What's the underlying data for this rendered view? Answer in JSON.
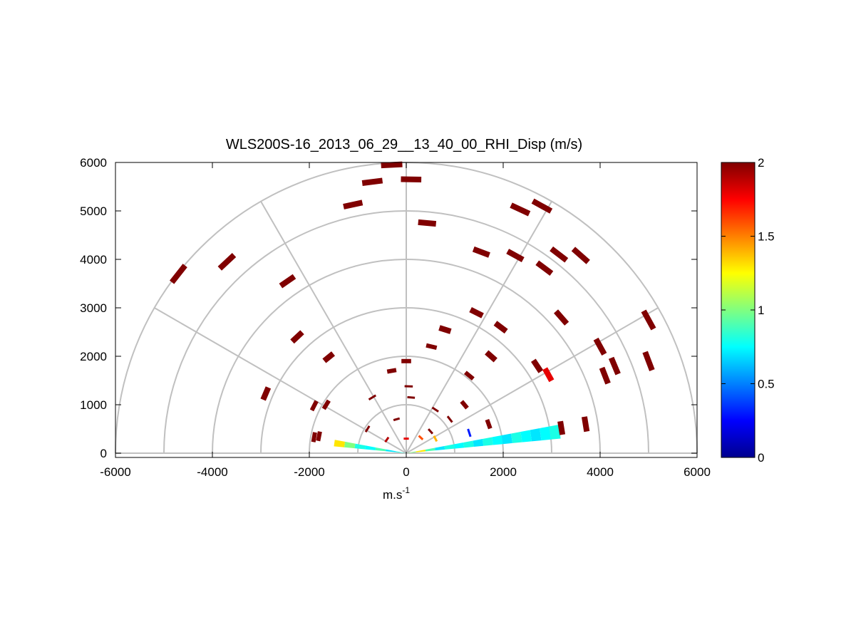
{
  "chart_data": {
    "type": "scatter",
    "title": "WLS200S-16_2013_06_29__13_40_00_RHI_Disp (m/s)",
    "xlabel": "m.s",
    "xlabel_superscript": "-1",
    "ylabel": "",
    "xlim": [
      -6000,
      6000
    ],
    "ylim": [
      -100,
      6000
    ],
    "x_ticks": [
      -6000,
      -4000,
      -2000,
      0,
      2000,
      4000,
      6000
    ],
    "y_ticks": [
      0,
      1000,
      2000,
      3000,
      4000,
      5000,
      6000
    ],
    "grid": true,
    "polar_rings": [
      1000,
      2000,
      3000,
      4000,
      5000,
      6000
    ],
    "polar_spokes_deg": [
      0,
      30,
      60,
      90,
      120,
      150,
      180
    ],
    "colorbar": {
      "min": 0,
      "max": 2,
      "ticks": [
        0,
        0.5,
        1,
        1.5,
        2
      ],
      "colormap": "jet",
      "colors": [
        "#00008f",
        "#0000ff",
        "#0080ff",
        "#00ffff",
        "#80ff80",
        "#ffff00",
        "#ff8000",
        "#ff0000",
        "#800000"
      ]
    },
    "beam": {
      "elevation_deg": 8,
      "range_max": 3200,
      "values_near_to_far": [
        1.0,
        1.3,
        0.9,
        0.7,
        0.8,
        0.75,
        0.8,
        0.7,
        0.8,
        0.75,
        0.7,
        0.8,
        0.75,
        0.7,
        0.75,
        0.8
      ]
    },
    "left_beam": {
      "elevation_deg": 172,
      "range_max": 1500,
      "values_near_to_far": [
        0.8,
        0.7,
        0.9,
        0.75,
        0.8,
        1.0,
        1.3
      ]
    },
    "points": [
      {
        "x": -4700,
        "y": 3700,
        "v": 2
      },
      {
        "x": -3700,
        "y": 3950,
        "v": 2
      },
      {
        "x": -2450,
        "y": 3550,
        "v": 2
      },
      {
        "x": -2250,
        "y": 2400,
        "v": 2
      },
      {
        "x": -1600,
        "y": 1980,
        "v": 2
      },
      {
        "x": -2900,
        "y": 1230,
        "v": 2
      },
      {
        "x": -1900,
        "y": 980,
        "v": 2
      },
      {
        "x": -1650,
        "y": 1000,
        "v": 2
      },
      {
        "x": -1100,
        "y": 5130,
        "v": 2
      },
      {
        "x": -700,
        "y": 5600,
        "v": 2
      },
      {
        "x": -300,
        "y": 5950,
        "v": 2
      },
      {
        "x": 100,
        "y": 5650,
        "v": 2
      },
      {
        "x": 430,
        "y": 4750,
        "v": 2
      },
      {
        "x": 1550,
        "y": 4150,
        "v": 2
      },
      {
        "x": 2350,
        "y": 5030,
        "v": 2
      },
      {
        "x": 2800,
        "y": 5100,
        "v": 2
      },
      {
        "x": 2250,
        "y": 4080,
        "v": 2
      },
      {
        "x": 2850,
        "y": 3820,
        "v": 2
      },
      {
        "x": 3150,
        "y": 4100,
        "v": 2
      },
      {
        "x": 3600,
        "y": 4080,
        "v": 2
      },
      {
        "x": 1450,
        "y": 2900,
        "v": 2
      },
      {
        "x": 1950,
        "y": 2600,
        "v": 2
      },
      {
        "x": 3200,
        "y": 2800,
        "v": 2
      },
      {
        "x": 800,
        "y": 2550,
        "v": 2
      },
      {
        "x": 520,
        "y": 2200,
        "v": 2
      },
      {
        "x": 1750,
        "y": 2000,
        "v": 2
      },
      {
        "x": 2700,
        "y": 1800,
        "v": 2
      },
      {
        "x": 2930,
        "y": 1620,
        "v": 1.8
      },
      {
        "x": 4000,
        "y": 2200,
        "v": 2
      },
      {
        "x": 4100,
        "y": 1600,
        "v": 2
      },
      {
        "x": 4300,
        "y": 1800,
        "v": 2
      },
      {
        "x": 5000,
        "y": 2750,
        "v": 2
      },
      {
        "x": 5000,
        "y": 1900,
        "v": 2
      },
      {
        "x": 3200,
        "y": 520,
        "v": 2
      },
      {
        "x": 3700,
        "y": 600,
        "v": 2
      },
      {
        "x": 1300,
        "y": 1600,
        "v": 2
      },
      {
        "x": -300,
        "y": 1700,
        "v": 2
      },
      {
        "x": 0,
        "y": 1900,
        "v": 2
      },
      {
        "x": 50,
        "y": 1380,
        "v": 2
      },
      {
        "x": 100,
        "y": 1150,
        "v": 2
      },
      {
        "x": 1200,
        "y": 1000,
        "v": 2
      },
      {
        "x": -700,
        "y": 1150,
        "v": 2
      },
      {
        "x": 600,
        "y": 900,
        "v": 2
      },
      {
        "x": -200,
        "y": 700,
        "v": 2
      },
      {
        "x": 900,
        "y": 700,
        "v": 2
      },
      {
        "x": 1700,
        "y": 600,
        "v": 2
      },
      {
        "x": -1800,
        "y": 350,
        "v": 2
      },
      {
        "x": -1900,
        "y": 330,
        "v": 2
      },
      {
        "x": 0,
        "y": 300,
        "v": 1.8
      },
      {
        "x": 300,
        "y": 320,
        "v": 1.6
      },
      {
        "x": -400,
        "y": 280,
        "v": 1.9
      },
      {
        "x": 500,
        "y": 450,
        "v": 2
      },
      {
        "x": -800,
        "y": 500,
        "v": 2
      },
      {
        "x": 1300,
        "y": 420,
        "v": 0.3
      },
      {
        "x": 600,
        "y": 300,
        "v": 1.4
      }
    ]
  }
}
